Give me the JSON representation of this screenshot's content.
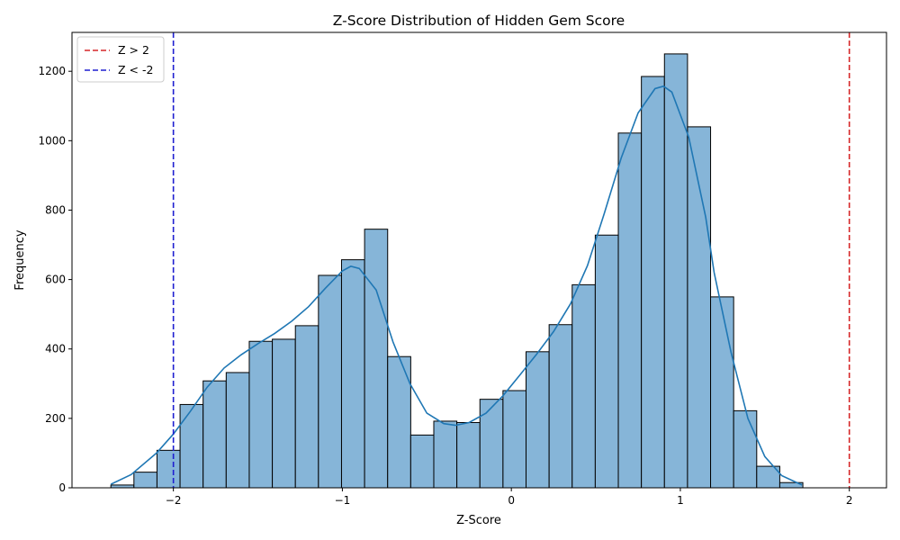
{
  "chart_data": {
    "type": "bar",
    "title": "Z-Score Distribution of Hidden Gem Score",
    "xlabel": "Z-Score",
    "ylabel": "Frequency",
    "xlim": [
      -2.6,
      2.22
    ],
    "ylim": [
      0,
      1312
    ],
    "xticks": [
      -2,
      -1,
      0,
      1,
      2
    ],
    "xtick_labels": [
      "−2",
      "−1",
      "0",
      "1",
      "2"
    ],
    "yticks": [
      0,
      200,
      400,
      600,
      800,
      1000,
      1200
    ],
    "bin_start": -2.37,
    "bin_width": 0.1365,
    "counts": [
      8,
      45,
      108,
      240,
      308,
      332,
      422,
      428,
      467,
      612,
      657,
      745,
      378,
      152,
      192,
      188,
      255,
      280,
      392,
      470,
      585,
      728,
      1022,
      1185,
      1250,
      1040,
      550,
      222,
      62,
      15
    ],
    "kde": [
      [
        -2.37,
        10
      ],
      [
        -2.25,
        38
      ],
      [
        -2.1,
        100
      ],
      [
        -2.0,
        155
      ],
      [
        -1.9,
        220
      ],
      [
        -1.8,
        290
      ],
      [
        -1.7,
        345
      ],
      [
        -1.6,
        383
      ],
      [
        -1.5,
        415
      ],
      [
        -1.4,
        445
      ],
      [
        -1.3,
        480
      ],
      [
        -1.2,
        522
      ],
      [
        -1.1,
        575
      ],
      [
        -1.0,
        625
      ],
      [
        -0.95,
        638
      ],
      [
        -0.9,
        632
      ],
      [
        -0.8,
        570
      ],
      [
        -0.7,
        420
      ],
      [
        -0.6,
        300
      ],
      [
        -0.5,
        215
      ],
      [
        -0.4,
        185
      ],
      [
        -0.33,
        180
      ],
      [
        -0.25,
        188
      ],
      [
        -0.15,
        215
      ],
      [
        -0.05,
        265
      ],
      [
        0.05,
        325
      ],
      [
        0.15,
        385
      ],
      [
        0.25,
        450
      ],
      [
        0.35,
        530
      ],
      [
        0.45,
        640
      ],
      [
        0.55,
        790
      ],
      [
        0.65,
        950
      ],
      [
        0.75,
        1080
      ],
      [
        0.85,
        1150
      ],
      [
        0.9,
        1157
      ],
      [
        0.95,
        1140
      ],
      [
        1.05,
        1010
      ],
      [
        1.15,
        780
      ],
      [
        1.2,
        620
      ],
      [
        1.3,
        390
      ],
      [
        1.4,
        200
      ],
      [
        1.5,
        90
      ],
      [
        1.6,
        35
      ],
      [
        1.72,
        8
      ]
    ],
    "vlines": [
      {
        "x": 2,
        "color": "#d62728",
        "label": "Z > 2"
      },
      {
        "x": -2,
        "color": "#1f1fd0",
        "label": "Z < -2"
      }
    ],
    "bar_color": "#86b5d8",
    "bar_edge": "#000000",
    "kde_color": "#1f77b4",
    "legend_position": "top-left"
  }
}
